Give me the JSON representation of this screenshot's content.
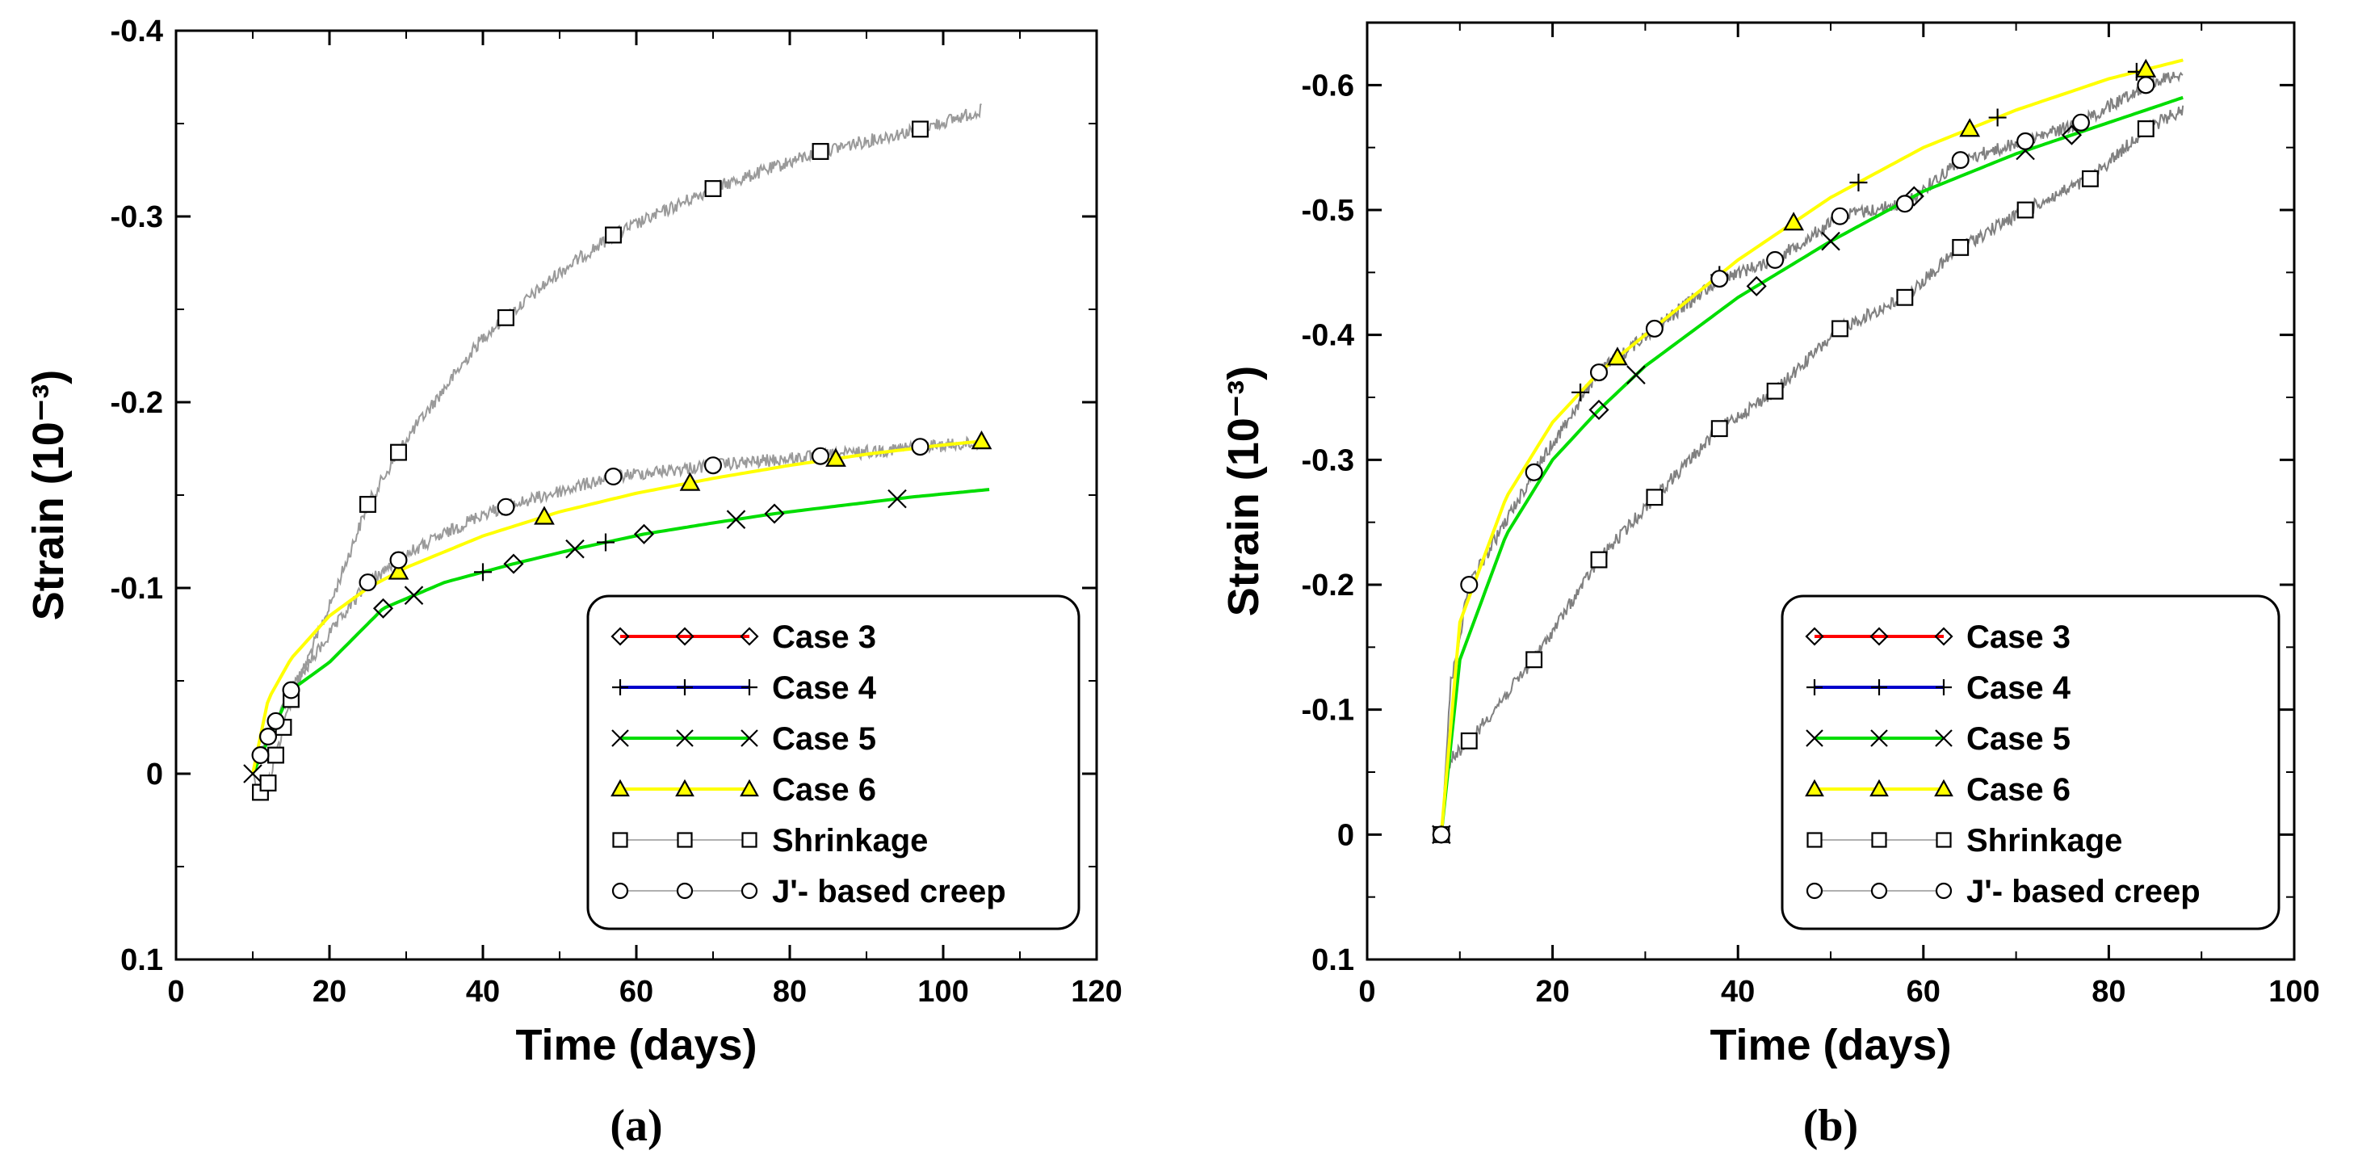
{
  "figure": {
    "panels": [
      "(a)",
      "(b)"
    ]
  },
  "chart_data": [
    {
      "type": "line",
      "panel_label": "(a)",
      "xlabel": "Time (days)",
      "ylabel": "Strain (10⁻³)",
      "xlim": [
        0,
        120
      ],
      "ylim": [
        -0.4,
        0.1
      ],
      "xticks": [
        0,
        20,
        40,
        60,
        80,
        100,
        120
      ],
      "yticks": [
        -0.4,
        -0.3,
        -0.2,
        -0.1,
        0,
        0.1
      ],
      "ytick_labels": [
        "-0.4",
        "-0.3",
        "-0.2",
        "-0.1",
        "0",
        "0.1"
      ],
      "y_inverted": true,
      "legend_position": "bottom-right",
      "series": [
        {
          "name": "Case 3",
          "color": "#ff0000",
          "marker": "diamond",
          "x": [
            10,
            15,
            20,
            27,
            35,
            44,
            52,
            61,
            70,
            78,
            88,
            96,
            106
          ],
          "y": [
            0,
            -0.045,
            -0.06,
            -0.089,
            -0.103,
            -0.113,
            -0.121,
            -0.129,
            -0.135,
            -0.14,
            -0.145,
            -0.149,
            -0.153
          ],
          "markers_x": [
            27,
            44,
            61,
            78
          ]
        },
        {
          "name": "Case 4",
          "color": "#0000cc",
          "marker": "plus",
          "x": [
            10,
            15,
            20,
            27,
            35,
            44,
            52,
            61,
            70,
            78,
            88,
            96,
            106
          ],
          "y": [
            0,
            -0.045,
            -0.06,
            -0.089,
            -0.103,
            -0.113,
            -0.121,
            -0.129,
            -0.135,
            -0.14,
            -0.145,
            -0.149,
            -0.153
          ],
          "markers_x": [
            40,
            56
          ]
        },
        {
          "name": "Case 5",
          "color": "#00dd00",
          "marker": "x",
          "x": [
            10,
            15,
            20,
            27,
            35,
            44,
            52,
            61,
            70,
            78,
            88,
            96,
            106
          ],
          "y": [
            0,
            -0.045,
            -0.06,
            -0.089,
            -0.103,
            -0.113,
            -0.121,
            -0.129,
            -0.135,
            -0.14,
            -0.145,
            -0.149,
            -0.153
          ],
          "markers_x": [
            10,
            31,
            52,
            73,
            94
          ]
        },
        {
          "name": "Case 6",
          "color": "#ffff00",
          "marker": "triangle",
          "x": [
            10,
            12,
            15,
            20,
            25,
            30,
            40,
            50,
            60,
            70,
            80,
            90,
            100,
            105
          ],
          "y": [
            0,
            -0.04,
            -0.062,
            -0.085,
            -0.1,
            -0.111,
            -0.128,
            -0.141,
            -0.151,
            -0.159,
            -0.166,
            -0.172,
            -0.177,
            -0.179
          ],
          "markers_x": [
            29,
            48,
            67,
            86,
            105
          ]
        },
        {
          "name": "Shrinkage",
          "color": "#9a9a9a",
          "marker": "square",
          "noisy": true,
          "x": [
            10,
            11,
            12,
            15,
            20,
            25,
            30,
            40,
            50,
            57,
            70,
            84,
            97,
            105
          ],
          "y": [
            0,
            0.01,
            0.005,
            -0.04,
            -0.09,
            -0.145,
            -0.18,
            -0.235,
            -0.27,
            -0.29,
            -0.315,
            -0.335,
            -0.347,
            -0.357
          ],
          "markers_x": [
            11,
            12,
            13,
            14,
            15,
            25,
            29,
            43,
            57,
            70,
            84,
            97
          ]
        },
        {
          "name": "J'- based creep",
          "color": "#9a9a9a",
          "marker": "circle",
          "noisy": true,
          "x": [
            10,
            12,
            15,
            20,
            25,
            30,
            40,
            50,
            57,
            70,
            84,
            97,
            105
          ],
          "y": [
            0,
            -0.02,
            -0.045,
            -0.075,
            -0.103,
            -0.118,
            -0.14,
            -0.152,
            -0.16,
            -0.166,
            -0.171,
            -0.176,
            -0.178
          ],
          "markers_x": [
            11,
            12,
            13,
            15,
            25,
            29,
            43,
            57,
            70,
            84,
            97
          ]
        }
      ]
    },
    {
      "type": "line",
      "panel_label": "(b)",
      "xlabel": "Time (days)",
      "ylabel": "Strain (10⁻³)",
      "xlim": [
        0,
        100
      ],
      "ylim": [
        -0.65,
        0.1
      ],
      "xticks": [
        0,
        20,
        40,
        60,
        80,
        100
      ],
      "yticks": [
        -0.6,
        -0.5,
        -0.4,
        -0.3,
        -0.2,
        -0.1,
        0,
        0.1
      ],
      "ytick_labels": [
        "-0.6",
        "-0.5",
        "-0.4",
        "-0.3",
        "-0.2",
        "-0.1",
        "0",
        "0.1"
      ],
      "y_inverted": true,
      "legend_position": "bottom-right",
      "series": [
        {
          "name": "Case 3",
          "color": "#ff0000",
          "marker": "diamond",
          "x": [
            8,
            10,
            15,
            20,
            25,
            30,
            40,
            50,
            60,
            70,
            80,
            88
          ],
          "y": [
            0,
            -0.14,
            -0.24,
            -0.3,
            -0.34,
            -0.375,
            -0.43,
            -0.475,
            -0.515,
            -0.545,
            -0.57,
            -0.59
          ],
          "markers_x": [
            25,
            42,
            59,
            76
          ]
        },
        {
          "name": "Case 4",
          "color": "#0000cc",
          "marker": "plus",
          "x": [
            8,
            10,
            15,
            20,
            25,
            30,
            40,
            50,
            60,
            70,
            80,
            88
          ],
          "y": [
            0,
            -0.17,
            -0.27,
            -0.33,
            -0.37,
            -0.4,
            -0.46,
            -0.51,
            -0.55,
            -0.58,
            -0.605,
            -0.62
          ],
          "markers_x": [
            8,
            23,
            38,
            53,
            68,
            83
          ]
        },
        {
          "name": "Case 5",
          "color": "#00dd00",
          "marker": "x",
          "x": [
            8,
            10,
            15,
            20,
            25,
            30,
            40,
            50,
            60,
            70,
            80,
            88
          ],
          "y": [
            0,
            -0.14,
            -0.24,
            -0.3,
            -0.34,
            -0.375,
            -0.43,
            -0.475,
            -0.515,
            -0.545,
            -0.57,
            -0.59
          ],
          "markers_x": [
            8,
            29,
            50,
            71
          ]
        },
        {
          "name": "Case 6",
          "color": "#ffff00",
          "marker": "triangle",
          "x": [
            8,
            10,
            15,
            20,
            25,
            30,
            40,
            50,
            60,
            70,
            80,
            88
          ],
          "y": [
            0,
            -0.17,
            -0.27,
            -0.33,
            -0.37,
            -0.4,
            -0.46,
            -0.51,
            -0.55,
            -0.58,
            -0.605,
            -0.62
          ],
          "markers_x": [
            27,
            46,
            65,
            84
          ]
        },
        {
          "name": "Shrinkage",
          "color": "#808080",
          "marker": "square",
          "noisy": true,
          "x": [
            8,
            8.5,
            9,
            11,
            18,
            25,
            31,
            38,
            44,
            51,
            58,
            64,
            71,
            78,
            84,
            88
          ],
          "y": [
            0,
            -0.05,
            -0.06,
            -0.075,
            -0.14,
            -0.22,
            -0.27,
            -0.325,
            -0.355,
            -0.405,
            -0.43,
            -0.47,
            -0.5,
            -0.525,
            -0.565,
            -0.58
          ],
          "markers_x": [
            8,
            11,
            18,
            25,
            31,
            38,
            44,
            51,
            58,
            64,
            71,
            78,
            84
          ]
        },
        {
          "name": "J'- based creep",
          "color": "#808080",
          "marker": "circle",
          "noisy": true,
          "x": [
            8,
            9,
            11,
            18,
            25,
            31,
            38,
            44,
            51,
            58,
            64,
            71,
            77,
            84,
            88
          ],
          "y": [
            0,
            -0.12,
            -0.2,
            -0.29,
            -0.37,
            -0.405,
            -0.445,
            -0.46,
            -0.495,
            -0.505,
            -0.54,
            -0.555,
            -0.57,
            -0.6,
            -0.61
          ],
          "markers_x": [
            8,
            11,
            18,
            25,
            31,
            38,
            44,
            51,
            58,
            64,
            71,
            77,
            84
          ]
        }
      ]
    }
  ]
}
